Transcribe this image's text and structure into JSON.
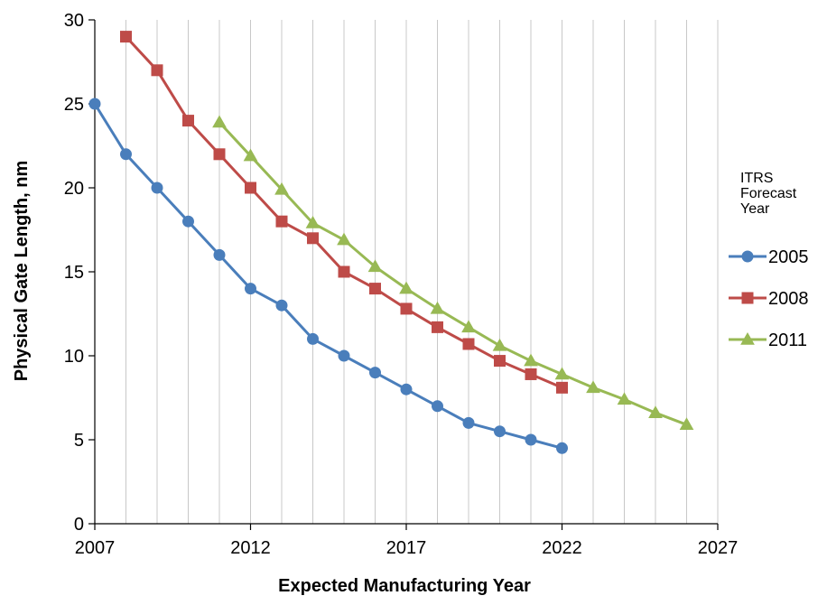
{
  "chart_data": {
    "type": "line",
    "xlabel": "Expected Manufacturing Year",
    "ylabel": "Physical Gate Length, nm",
    "xlim": [
      2007,
      2027
    ],
    "ylim": [
      0,
      30
    ],
    "x_ticks": [
      "2007",
      "2012",
      "2017",
      "2022",
      "2027"
    ],
    "y_ticks": [
      "0",
      "5",
      "10",
      "15",
      "20",
      "25",
      "30"
    ],
    "grid": {
      "vertical": true,
      "horizontal": false,
      "x_step": 1
    },
    "legend": {
      "title_lines": [
        "ITRS",
        "Forecast",
        "Year"
      ],
      "placement": "right"
    },
    "series": [
      {
        "name": "2005",
        "color": "#4a7ebb",
        "marker": "circle",
        "x": [
          2007,
          2008,
          2009,
          2010,
          2011,
          2012,
          2013,
          2014,
          2015,
          2016,
          2017,
          2018,
          2019,
          2020,
          2021,
          2022
        ],
        "values": [
          25,
          22,
          20,
          18,
          16,
          14,
          13,
          11,
          10,
          9,
          8,
          7,
          6,
          5.5,
          5,
          4.5
        ]
      },
      {
        "name": "2008",
        "color": "#be4b48",
        "marker": "square",
        "x": [
          2008,
          2009,
          2010,
          2011,
          2012,
          2013,
          2014,
          2015,
          2016,
          2017,
          2018,
          2019,
          2020,
          2021,
          2022
        ],
        "values": [
          29,
          27,
          24,
          22,
          20,
          18,
          17,
          15,
          14,
          12.8,
          11.7,
          10.7,
          9.7,
          8.9,
          8.1
        ]
      },
      {
        "name": "2011",
        "color": "#98b954",
        "marker": "triangle",
        "x": [
          2011,
          2012,
          2013,
          2014,
          2015,
          2016,
          2017,
          2018,
          2019,
          2020,
          2021,
          2022,
          2023,
          2024,
          2025,
          2026
        ],
        "values": [
          23.9,
          21.9,
          19.9,
          17.9,
          16.9,
          15.3,
          14.0,
          12.8,
          11.7,
          10.6,
          9.7,
          8.9,
          8.1,
          7.4,
          6.6,
          5.9
        ]
      }
    ]
  }
}
